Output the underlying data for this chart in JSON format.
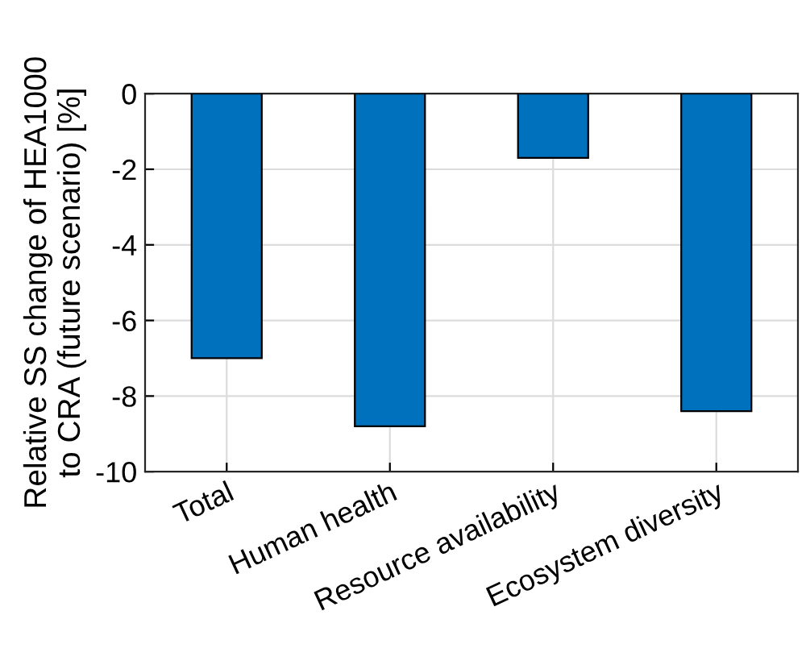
{
  "chart_data": {
    "type": "bar",
    "ylabel": "Relative SS change of HEA1000\nto CRA (future scenario) [%]",
    "categories": [
      "Total",
      "Human health",
      "Resource availability",
      "Ecosystem diversity"
    ],
    "values": [
      -7.0,
      -8.8,
      -1.7,
      -8.4
    ],
    "color": "#0072bd",
    "ylim": [
      -10,
      0
    ],
    "yticks": [
      -10,
      -8,
      -6,
      -4,
      -2,
      0
    ],
    "grid": true
  }
}
